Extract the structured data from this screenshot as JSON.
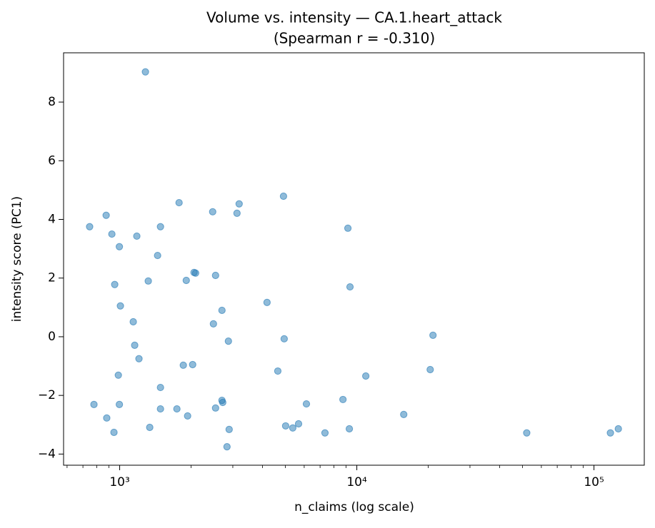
{
  "chart_data": {
    "type": "scatter",
    "title": "Volume vs. intensity — CA.1.heart_attack",
    "subtitle": "(Spearman r = -0.310)",
    "xlabel": "n_claims (log scale)",
    "ylabel": "intensity score (PC1)",
    "xscale": "log",
    "xlim": [
      580,
      163000
    ],
    "ylim": [
      -4.38,
      9.68
    ],
    "xticks": [
      {
        "value": 1000,
        "label": "10³"
      },
      {
        "value": 10000,
        "label": "10⁴"
      },
      {
        "value": 100000,
        "label": "10⁵"
      }
    ],
    "xminorticks": [
      600,
      700,
      800,
      900,
      2000,
      3000,
      4000,
      5000,
      6000,
      7000,
      8000,
      9000,
      20000,
      30000,
      40000,
      50000,
      60000,
      70000,
      80000,
      90000
    ],
    "yticks": [
      {
        "value": -4,
        "label": "−4"
      },
      {
        "value": -2,
        "label": "−2"
      },
      0,
      2,
      4,
      6,
      8
    ],
    "color": "#1f77b4",
    "x": [
      1284,
      747,
      877,
      927,
      997,
      1181,
      1780,
      1486,
      1445,
      2467,
      3190,
      3124,
      4907,
      9170,
      9360,
      953,
      1320,
      1909,
      2059,
      2090,
      2537,
      1007,
      1141,
      4182,
      2700,
      2485,
      2874,
      4940,
      20950,
      1157,
      1206,
      1855,
      2031,
      987,
      4643,
      10910,
      20390,
      1486,
      779,
      997,
      1486,
      1743,
      2537,
      2700,
      2720,
      6130,
      8740,
      15770,
      882,
      1934,
      946,
      1339,
      2895,
      5010,
      5370,
      5680,
      7340,
      9300,
      2835,
      52060,
      117300,
      126700
    ],
    "y": [
      9.03,
      3.75,
      4.14,
      3.5,
      3.07,
      3.43,
      4.57,
      3.75,
      2.77,
      4.26,
      4.53,
      4.21,
      4.79,
      3.7,
      1.7,
      1.78,
      1.9,
      1.92,
      2.19,
      2.17,
      2.09,
      1.05,
      0.51,
      1.17,
      0.9,
      0.44,
      -0.15,
      -0.07,
      0.05,
      -0.29,
      -0.75,
      -0.97,
      -0.95,
      -1.31,
      -1.17,
      -1.34,
      -1.12,
      -1.73,
      -2.31,
      -2.31,
      -2.46,
      -2.46,
      -2.43,
      -2.17,
      -2.24,
      -2.29,
      -2.14,
      -2.65,
      -2.77,
      -2.7,
      -3.26,
      -3.09,
      -3.16,
      -3.04,
      -3.11,
      -2.97,
      -3.28,
      -3.14,
      -3.75,
      -3.28,
      -3.28,
      -3.14
    ]
  }
}
